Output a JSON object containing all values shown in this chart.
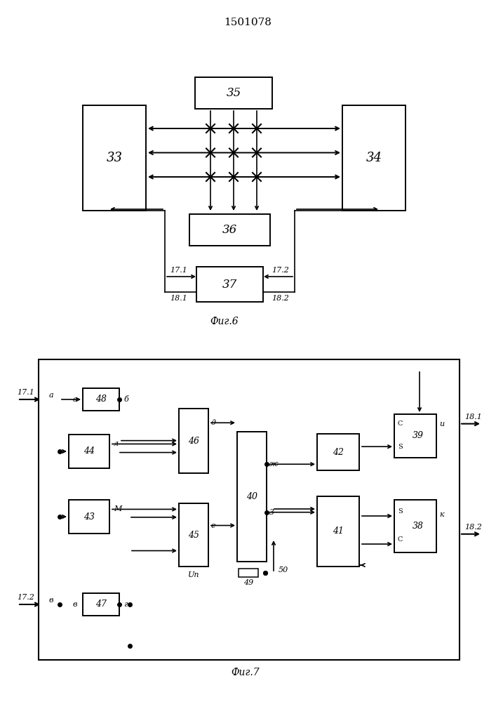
{
  "title": "1501078",
  "fig6_label": "Фиг.6",
  "fig7_label": "Фиг.7",
  "background_color": "#ffffff"
}
